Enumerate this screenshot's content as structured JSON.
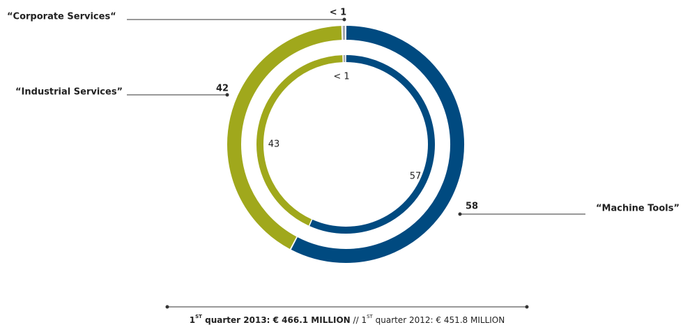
{
  "chart_data": {
    "type": "nested-donut",
    "categories": [
      "“Machine Tools”",
      "“Industrial Services”",
      "“Corporate Services“"
    ],
    "colors": [
      "#004a80",
      "#a0a81c",
      "#a3a8b0"
    ],
    "series": [
      {
        "values": [
          58,
          42,
          0.5
        ],
        "value_labels": [
          "58",
          "42",
          "< 1"
        ]
      },
      {
        "values": [
          57,
          43,
          0.5
        ],
        "value_labels": [
          "57",
          "43",
          "< 1"
        ]
      }
    ],
    "caption": {
      "current": {
        "ordinal": "1",
        "sup": "ST",
        "text": " quarter 2013: € 466.1 MILLION"
      },
      "separator": " // ",
      "previous": {
        "ordinal": "1",
        "sup": "ST",
        "text": " quarter 2012: € 451.8 MILLION"
      }
    }
  }
}
